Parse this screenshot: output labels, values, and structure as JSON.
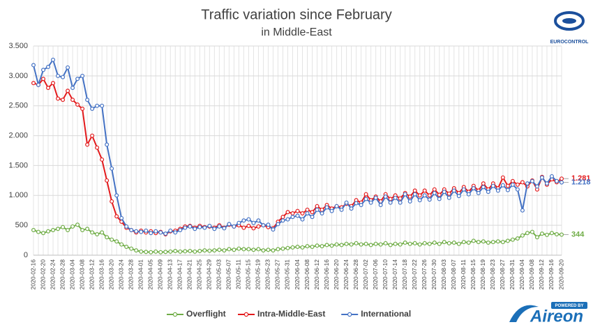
{
  "chart_data": {
    "type": "line",
    "title": "Traffic variation since February",
    "subtitle": "in Middle-East",
    "logos": {
      "eurocontrol": "EUROCONTROL",
      "aireon_tag": "POWERED BY",
      "aireon": "Aireon"
    },
    "categories": [
      "2020-02-16",
      null,
      "2020-02-20",
      null,
      "2020-02-24",
      null,
      "2020-02-28",
      null,
      "2020-03-04",
      null,
      "2020-03-08",
      null,
      "2020-03-12",
      null,
      "2020-03-16",
      null,
      "2020-03-20",
      null,
      "2020-03-24",
      null,
      "2020-03-28",
      null,
      "2020-04-01",
      null,
      "2020-04-05",
      null,
      "2020-04-09",
      null,
      "2020-04-13",
      null,
      "2020-04-17",
      null,
      "2020-04-21",
      null,
      "2020-04-25",
      null,
      "2020-04-29",
      null,
      "2020-05-03",
      null,
      "2020-05-07",
      null,
      "2020-05-11",
      null,
      "2020-05-15",
      null,
      "2020-05-19",
      null,
      "2020-05-23",
      null,
      "2020-05-27",
      null,
      "2020-05-31",
      null,
      "2020-06-04",
      null,
      "2020-06-08",
      null,
      "2020-06-12",
      null,
      "2020-06-16",
      null,
      "2020-06-20",
      null,
      "2020-06-24",
      null,
      "2020-06-28",
      null,
      "2020-07-02",
      null,
      "2020-07-06",
      null,
      "2020-07-10",
      null,
      "2020-07-14",
      null,
      "2020-07-18",
      null,
      "2020-07-22",
      null,
      "2020-07-26",
      null,
      "2020-07-30",
      null,
      "2020-08-03",
      null,
      "2020-08-07",
      null,
      "2020-08-11",
      null,
      "2020-08-15",
      null,
      "2020-08-19",
      null,
      "2020-08-23",
      null,
      "2020-08-27",
      null,
      "2020-08-31",
      null,
      "2020-09-04",
      null,
      "2020-09-08",
      null,
      "2020-09-12",
      null,
      "2020-09-16",
      null,
      "2020-09-20"
    ],
    "series": [
      {
        "name": "Overflight",
        "color": "#70ad47",
        "label_last": true,
        "values": [
          420,
          390,
          370,
          400,
          420,
          440,
          470,
          420,
          480,
          510,
          420,
          440,
          380,
          350,
          380,
          300,
          260,
          230,
          180,
          140,
          110,
          80,
          60,
          55,
          50,
          60,
          50,
          55,
          60,
          70,
          60,
          65,
          70,
          60,
          70,
          80,
          75,
          80,
          90,
          80,
          100,
          90,
          110,
          100,
          100,
          90,
          100,
          80,
          90,
          80,
          100,
          110,
          120,
          130,
          140,
          130,
          150,
          140,
          160,
          150,
          170,
          160,
          180,
          170,
          190,
          180,
          200,
          180,
          190,
          170,
          190,
          180,
          200,
          170,
          190,
          180,
          210,
          190,
          200,
          180,
          200,
          190,
          210,
          190,
          220,
          200,
          210,
          190,
          220,
          210,
          240,
          220,
          230,
          210,
          220,
          230,
          220,
          240,
          260,
          280,
          330,
          370,
          390,
          300,
          360,
          340,
          370,
          350,
          344
        ]
      },
      {
        "name": "Intra-Middle-East",
        "color": "#e31a1c",
        "label_last": true,
        "values": [
          2880,
          2850,
          2950,
          2800,
          2880,
          2620,
          2600,
          2750,
          2600,
          2520,
          2450,
          1850,
          2000,
          1800,
          1600,
          1250,
          900,
          650,
          560,
          460,
          420,
          380,
          410,
          380,
          400,
          370,
          390,
          350,
          400,
          410,
          440,
          480,
          490,
          460,
          490,
          470,
          480,
          460,
          500,
          460,
          510,
          480,
          500,
          460,
          490,
          450,
          480,
          500,
          470,
          450,
          560,
          640,
          720,
          700,
          740,
          700,
          760,
          720,
          820,
          760,
          840,
          780,
          820,
          800,
          860,
          820,
          920,
          880,
          1020,
          920,
          980,
          900,
          1020,
          940,
          1000,
          950,
          1040,
          980,
          1080,
          1000,
          1080,
          1000,
          1100,
          1010,
          1100,
          1030,
          1120,
          1040,
          1140,
          1060,
          1160,
          1080,
          1200,
          1100,
          1200,
          1120,
          1300,
          1160,
          1240,
          1180,
          1220,
          1150,
          1250,
          1100,
          1310,
          1180,
          1270,
          1220,
          1281
        ],
        "value_labels": [
          null,
          null,
          null,
          null,
          null,
          null,
          null,
          null,
          null,
          null,
          null,
          null,
          null,
          null,
          null,
          null,
          null,
          null,
          null,
          null,
          null,
          null,
          null,
          null,
          null,
          null,
          null,
          null,
          null,
          null,
          null,
          null,
          null,
          null,
          null,
          null,
          null,
          null,
          null,
          null,
          null,
          null,
          null,
          null,
          null,
          null,
          null,
          null,
          null,
          null,
          null,
          null,
          null,
          null,
          null,
          null,
          null,
          null,
          null,
          null,
          null,
          null,
          null,
          null,
          null,
          null,
          null,
          null,
          null,
          null,
          null,
          null,
          null,
          null,
          null,
          null,
          null,
          null,
          null,
          null,
          null,
          null,
          null,
          null,
          null,
          null,
          null,
          null,
          null,
          null,
          null,
          null,
          null,
          null,
          null,
          null,
          null,
          null,
          null,
          null,
          null,
          null,
          null,
          null,
          null,
          null,
          null,
          null,
          "1.281"
        ]
      },
      {
        "name": "International",
        "color": "#4472c4",
        "label_last": true,
        "values": [
          3180,
          2850,
          3100,
          3150,
          3270,
          3000,
          2980,
          3140,
          2800,
          2950,
          3000,
          2600,
          2450,
          2500,
          2500,
          1850,
          1450,
          1000,
          620,
          480,
          420,
          400,
          390,
          410,
          370,
          400,
          380,
          360,
          410,
          380,
          420,
          460,
          480,
          440,
          470,
          460,
          490,
          440,
          480,
          450,
          520,
          480,
          540,
          580,
          600,
          540,
          580,
          500,
          510,
          430,
          520,
          580,
          600,
          640,
          660,
          600,
          700,
          640,
          760,
          700,
          800,
          740,
          820,
          760,
          880,
          780,
          870,
          840,
          940,
          880,
          960,
          840,
          980,
          880,
          960,
          880,
          1020,
          900,
          1020,
          920,
          1000,
          930,
          1040,
          940,
          1060,
          960,
          1080,
          990,
          1100,
          1020,
          1120,
          1040,
          1140,
          1060,
          1160,
          1080,
          1170,
          1090,
          1180,
          1100,
          750,
          1200,
          1240,
          1150,
          1300,
          1200,
          1320,
          1240,
          1218
        ],
        "value_labels": [
          null,
          null,
          null,
          null,
          null,
          null,
          null,
          null,
          null,
          null,
          null,
          null,
          null,
          null,
          null,
          null,
          null,
          null,
          null,
          null,
          null,
          null,
          null,
          null,
          null,
          null,
          null,
          null,
          null,
          null,
          null,
          null,
          null,
          null,
          null,
          null,
          null,
          null,
          null,
          null,
          null,
          null,
          null,
          null,
          null,
          null,
          null,
          null,
          null,
          null,
          null,
          null,
          null,
          null,
          null,
          null,
          null,
          null,
          null,
          null,
          null,
          null,
          null,
          null,
          null,
          null,
          null,
          null,
          null,
          null,
          null,
          null,
          null,
          null,
          null,
          null,
          null,
          null,
          null,
          null,
          null,
          null,
          null,
          null,
          null,
          null,
          null,
          null,
          null,
          null,
          null,
          null,
          null,
          null,
          null,
          null,
          null,
          null,
          null,
          null,
          null,
          null,
          null,
          null,
          null,
          null,
          null,
          null,
          "1.218"
        ]
      }
    ],
    "ylim": [
      0,
      3500
    ],
    "yticks": [
      0,
      500,
      {
        "value": 1000,
        "label": "1.000"
      },
      {
        "value": 1500,
        "label": "1.500"
      },
      {
        "value": 2000,
        "label": "2.000"
      },
      {
        "value": 2500,
        "label": "2.500"
      },
      {
        "value": 3000,
        "label": "3.000"
      },
      {
        "value": 3500,
        "label": "3.500"
      }
    ],
    "grid": true,
    "legend": "bottom"
  }
}
